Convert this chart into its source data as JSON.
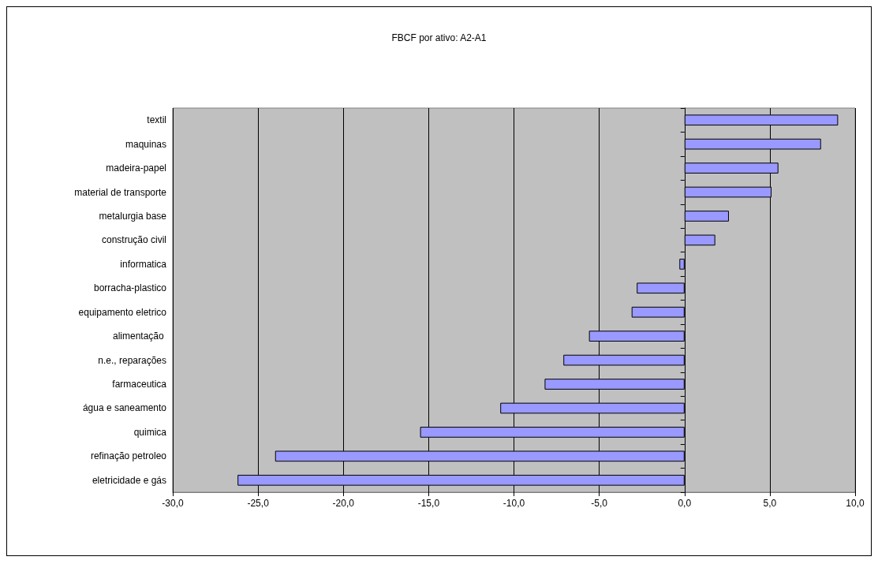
{
  "chart_data": {
    "type": "bar",
    "title": "FBCF por ativo: A2-A1",
    "orientation": "horizontal",
    "categories": [
      "textil",
      "maquinas",
      "madeira-papel",
      "material de transporte",
      "metalurgia base",
      "construção civil",
      "informatica",
      "borracha-plastico",
      "equipamento eletrico",
      "alimentação ",
      "n.e., reparações",
      "farmaceutica",
      "água e saneamento",
      "quimica",
      "refinação petroleo",
      "eletricidade e gás"
    ],
    "values": [
      9.0,
      8.0,
      5.5,
      5.1,
      2.6,
      1.8,
      -0.3,
      -2.8,
      -3.1,
      -5.6,
      -7.1,
      -8.2,
      -10.8,
      -15.5,
      -24.0,
      -26.2
    ],
    "color": "#9999ff",
    "xlim": [
      -30,
      10
    ],
    "xticks": [
      {
        "value": -30,
        "label": "-30,0"
      },
      {
        "value": -25,
        "label": "-25,0"
      },
      {
        "value": -20,
        "label": "-20,0"
      },
      {
        "value": -15,
        "label": "-15,0"
      },
      {
        "value": -10,
        "label": "-10,0"
      },
      {
        "value": -5,
        "label": "-5,0"
      },
      {
        "value": 0,
        "label": "0,0"
      },
      {
        "value": 5,
        "label": "5,0"
      },
      {
        "value": 10,
        "label": "10,0"
      }
    ],
    "grid": "x"
  }
}
